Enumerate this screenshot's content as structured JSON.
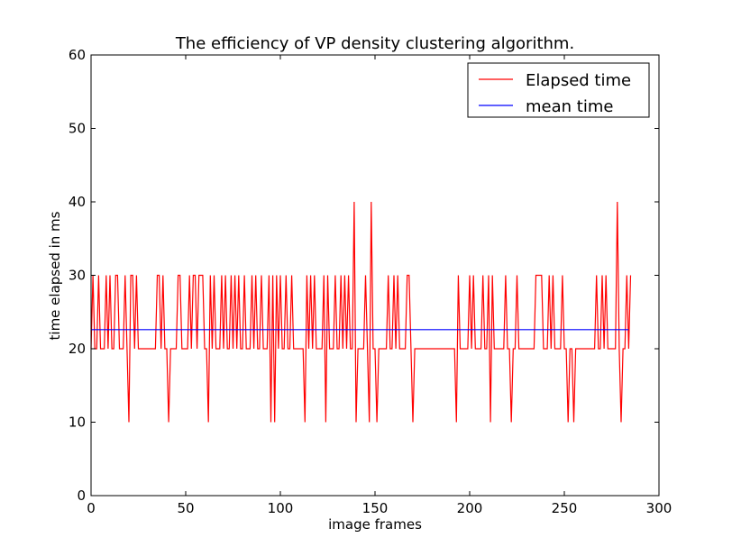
{
  "chart_data": {
    "type": "line",
    "title": "The efficiency of VP density clustering algorithm.",
    "xlabel": "image frames",
    "ylabel": "time elapsed in ms",
    "xlim": [
      0,
      300
    ],
    "ylim": [
      0,
      60
    ],
    "x_ticks": [
      0,
      50,
      100,
      150,
      200,
      250,
      300
    ],
    "y_ticks": [
      0,
      10,
      20,
      30,
      40,
      50,
      60
    ],
    "x_tick_labels": [
      "0",
      "50",
      "100",
      "150",
      "200",
      "250",
      "300"
    ],
    "y_tick_labels": [
      "0",
      "10",
      "20",
      "30",
      "40",
      "50",
      "60"
    ],
    "grid": false,
    "legend_position": "top-right",
    "series": [
      {
        "name": "Elapsed time",
        "color": "#ff0000",
        "style": "line",
        "values": [
          20,
          30,
          20,
          20,
          30,
          20,
          20,
          20,
          30,
          20,
          30,
          20,
          20,
          30,
          30,
          20,
          20,
          20,
          30,
          20,
          10,
          30,
          30,
          20,
          30,
          20,
          20,
          20,
          20,
          20,
          20,
          20,
          20,
          20,
          20,
          30,
          30,
          20,
          30,
          20,
          20,
          10,
          20,
          20,
          20,
          20,
          30,
          30,
          20,
          20,
          20,
          20,
          30,
          20,
          30,
          30,
          20,
          30,
          30,
          30,
          20,
          20,
          10,
          30,
          20,
          30,
          20,
          20,
          20,
          30,
          20,
          30,
          20,
          20,
          30,
          20,
          30,
          20,
          30,
          20,
          20,
          30,
          20,
          20,
          20,
          30,
          20,
          30,
          20,
          20,
          30,
          20,
          20,
          20,
          30,
          10,
          30,
          10,
          30,
          20,
          30,
          20,
          20,
          30,
          20,
          20,
          30,
          20,
          20,
          20,
          20,
          20,
          20,
          10,
          30,
          20,
          30,
          20,
          30,
          20,
          20,
          20,
          20,
          30,
          10,
          30,
          20,
          20,
          20,
          30,
          20,
          20,
          30,
          20,
          30,
          20,
          30,
          20,
          20,
          40,
          10,
          20,
          20,
          20,
          20,
          30,
          20,
          10,
          40,
          20,
          20,
          10,
          20,
          20,
          20,
          20,
          20,
          30,
          20,
          20,
          30,
          20,
          30,
          20,
          20,
          20,
          20,
          30,
          30,
          20,
          10,
          20,
          20,
          20,
          20,
          20,
          20,
          20,
          20,
          20,
          20,
          20,
          20,
          20,
          20,
          20,
          20,
          20,
          20,
          20,
          20,
          20,
          20,
          10,
          30,
          20,
          20,
          20,
          20,
          20,
          30,
          20,
          30,
          20,
          20,
          20,
          20,
          30,
          20,
          20,
          30,
          10,
          30,
          20,
          20,
          20,
          20,
          20,
          20,
          30,
          20,
          20,
          10,
          20,
          20,
          30,
          20,
          20,
          20,
          20,
          20,
          20,
          20,
          20,
          20,
          30,
          30,
          30,
          30,
          20,
          20,
          20,
          30,
          20,
          30,
          20,
          20,
          20,
          20,
          30,
          20,
          20,
          10,
          20,
          20,
          10,
          20,
          20,
          20,
          20,
          20,
          20,
          20,
          20,
          20,
          20,
          20,
          30,
          20,
          20,
          30,
          20,
          30,
          20,
          20,
          20,
          20,
          20,
          40,
          20,
          10,
          20,
          20,
          30,
          20,
          30
        ],
        "markers": []
      },
      {
        "name": "mean time",
        "color": "#0000ff",
        "style": "line",
        "x": [
          0,
          284
        ],
        "values": [
          22.6,
          22.6
        ],
        "markers": []
      }
    ]
  }
}
